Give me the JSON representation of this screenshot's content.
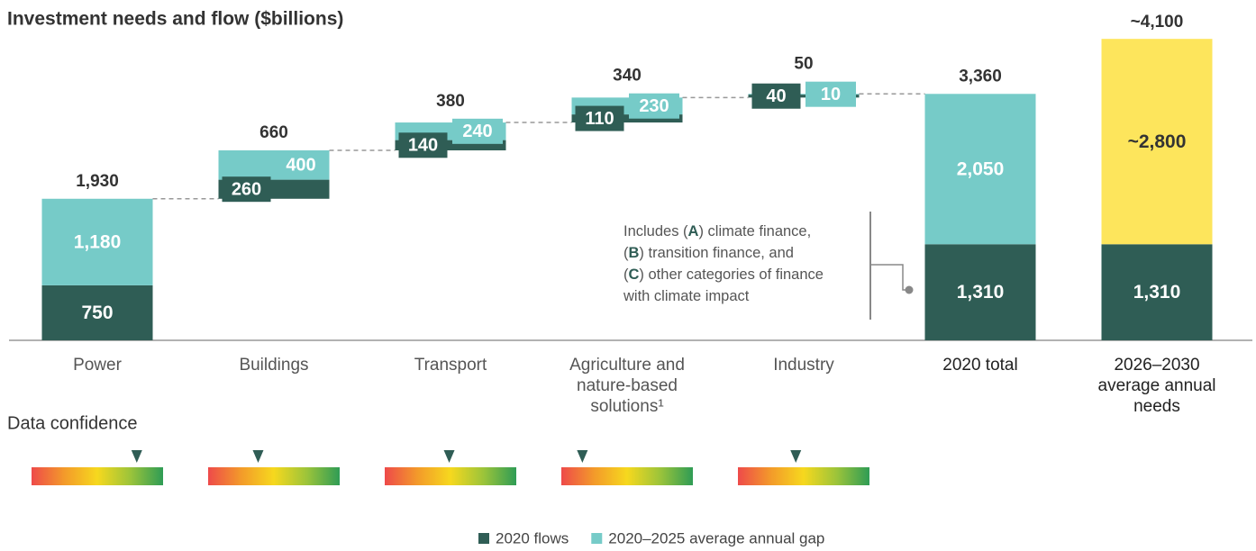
{
  "chart_data": {
    "type": "waterfall",
    "title": "Investment needs and flow ($billions)",
    "categories": [
      [
        "Power"
      ],
      [
        "Buildings"
      ],
      [
        "Transport"
      ],
      [
        "Agriculture and",
        "nature-based",
        "solutions¹"
      ],
      [
        "Industry"
      ],
      [
        "2020 total"
      ],
      [
        "2026–2030",
        "average annual",
        "needs"
      ]
    ],
    "series": [
      {
        "name": "2020 flows",
        "color": "#2f5d55",
        "label_color": "#ffffff",
        "values": [
          750,
          260,
          140,
          110,
          40,
          1310,
          1310
        ],
        "value_labels": [
          "750",
          "260",
          "140",
          "110",
          "40",
          "1,310",
          "1,310"
        ]
      },
      {
        "name": "2020–2025 average annual gap",
        "color": "#76cbc8",
        "label_color": "#ffffff",
        "values": [
          1180,
          400,
          240,
          230,
          10,
          2050,
          null
        ],
        "value_labels": [
          "1,180",
          "400",
          "240",
          "230",
          "10",
          "2,050",
          null
        ]
      },
      {
        "color": "#fde55c",
        "label_color": "#333333",
        "values": [
          null,
          null,
          null,
          null,
          null,
          null,
          2800
        ],
        "value_labels": [
          null,
          null,
          null,
          null,
          null,
          null,
          "~2,800"
        ]
      }
    ],
    "totals": [
      1930,
      660,
      380,
      340,
      50,
      3360,
      4100
    ],
    "total_labels": [
      "1,930",
      "660",
      "380",
      "340",
      "50",
      "3,360",
      "~4,100"
    ],
    "ylim": [
      0,
      4100
    ],
    "annotation": [
      [
        "Includes (",
        "A",
        ") climate finance,"
      ],
      [
        "(",
        "B",
        ") transition finance, and"
      ],
      [
        "(",
        "C",
        ") other categories of finance"
      ],
      [
        "with climate impact"
      ]
    ],
    "confidence": {
      "label": "Data confidence",
      "lim": [
        0,
        100
      ],
      "values": [
        80,
        38,
        49,
        16,
        44
      ]
    }
  }
}
